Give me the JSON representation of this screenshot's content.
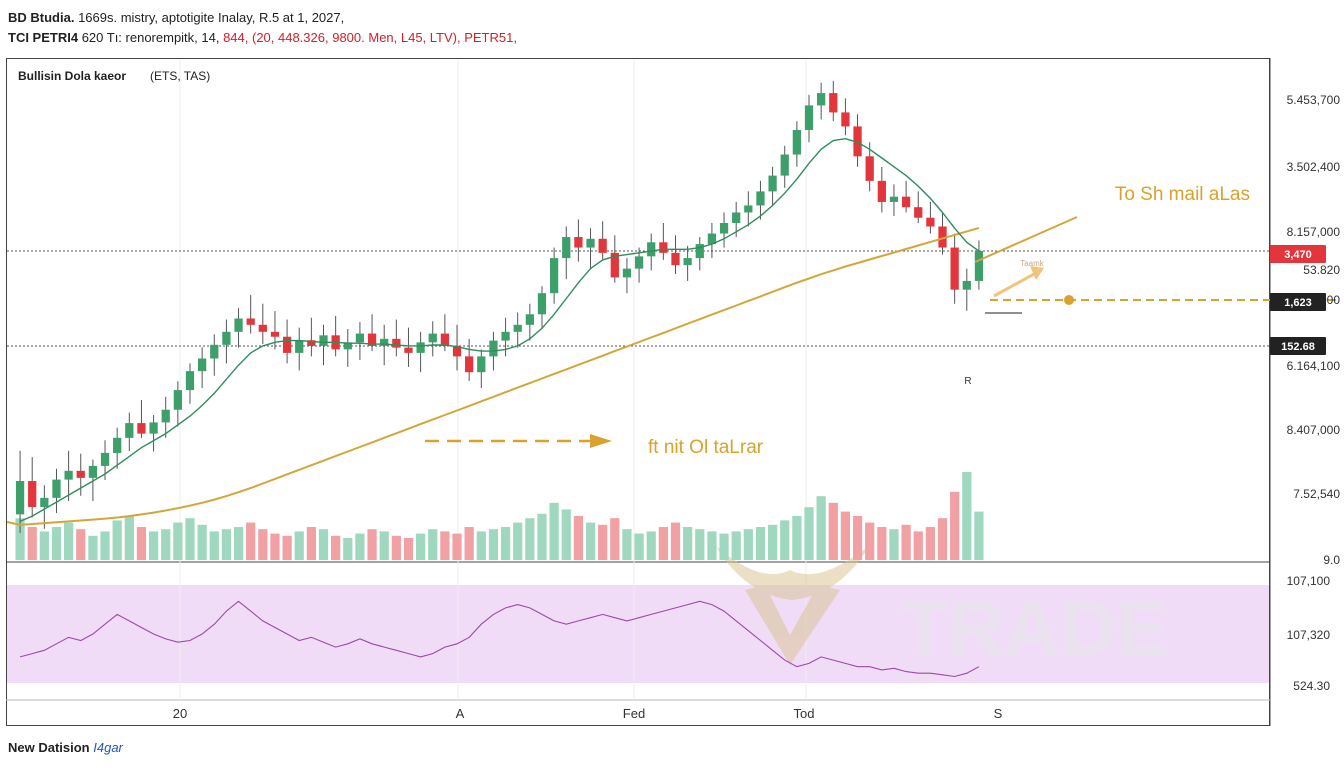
{
  "header": {
    "line1_bold": "BD Btudia.",
    "line1_rest": " 1669s. mistry, aptotigite Inalay, R.5 at 1, 2027,",
    "line2_bold": "TCI PETRI4",
    "line2_rest": " 620 Tı: renorempitk, 14, ",
    "line2_red": "844, (20, 448.326, 9800. Men, L45, LTV), PETR51,"
  },
  "chart_title": "Bullisin Dola kaeor",
  "chart_subtitle": "(ETS, TAS)",
  "footer": {
    "label": "New Datision",
    "link": "I4gar"
  },
  "colors": {
    "up": "#3da06a",
    "down": "#e2363c",
    "vol_up": "#9fd8bf",
    "vol_down": "#f1a0a4",
    "ma_long": "#d4a63a",
    "ma_short": "#2f8d5c",
    "rsi_line": "#9a4aa8",
    "rsi_band": "#f0dcf7",
    "annotation": "#d9a22e"
  },
  "chart_data": {
    "type": "candlestick",
    "x_ticks": [
      "20",
      "A",
      "Fed",
      "Tod",
      "S"
    ],
    "y_ticks": [
      "5.453,700",
      "3.502,400",
      "8.157,000",
      "53.820",
      "1,000",
      "6.164,100",
      "8.407,000",
      "7.52,540",
      "9.0"
    ],
    "price_labels": [
      {
        "text": "3,470",
        "color": "#e2363c"
      },
      {
        "text": "1,623",
        "color": "#222222"
      },
      {
        "text": "152.68",
        "color": "#222222"
      }
    ],
    "rsi_ticks": [
      "107,100",
      "107,320",
      "524.30"
    ],
    "annotations": [
      {
        "text": "To Sh mail aLas"
      },
      {
        "text": "ft nit Ol taLrar"
      },
      {
        "text": "R"
      },
      {
        "text": "Taamk"
      }
    ],
    "watermark": "TRADE",
    "candles_ohlc": [
      [
        5660,
        6022,
        5554,
        5850
      ],
      [
        5850,
        5986,
        5642,
        5702
      ],
      [
        5702,
        5826,
        5578,
        5754
      ],
      [
        5754,
        5920,
        5668,
        5858
      ],
      [
        5858,
        6022,
        5736,
        5908
      ],
      [
        5908,
        6006,
        5766,
        5868
      ],
      [
        5868,
        5972,
        5736,
        5936
      ],
      [
        5936,
        6082,
        5856,
        6010
      ],
      [
        6010,
        6154,
        5920,
        6096
      ],
      [
        6096,
        6240,
        6020,
        6180
      ],
      [
        6180,
        6312,
        6096,
        6120
      ],
      [
        6120,
        6226,
        6018,
        6184
      ],
      [
        6184,
        6330,
        6096,
        6256
      ],
      [
        6256,
        6418,
        6160,
        6368
      ],
      [
        6368,
        6520,
        6290,
        6476
      ],
      [
        6476,
        6612,
        6380,
        6548
      ],
      [
        6548,
        6686,
        6450,
        6626
      ],
      [
        6626,
        6770,
        6520,
        6700
      ],
      [
        6700,
        6836,
        6610,
        6776
      ],
      [
        6776,
        6910,
        6690,
        6740
      ],
      [
        6740,
        6860,
        6630,
        6700
      ],
      [
        6700,
        6818,
        6600,
        6672
      ],
      [
        6672,
        6770,
        6520,
        6580
      ],
      [
        6580,
        6724,
        6480,
        6652
      ],
      [
        6652,
        6780,
        6560,
        6620
      ],
      [
        6620,
        6740,
        6510,
        6680
      ],
      [
        6680,
        6790,
        6560,
        6600
      ],
      [
        6600,
        6716,
        6500,
        6640
      ],
      [
        6640,
        6756,
        6540,
        6690
      ],
      [
        6690,
        6800,
        6590,
        6620
      ],
      [
        6620,
        6740,
        6510,
        6660
      ],
      [
        6660,
        6770,
        6560,
        6610
      ],
      [
        6610,
        6724,
        6500,
        6580
      ],
      [
        6580,
        6700,
        6470,
        6640
      ],
      [
        6640,
        6760,
        6560,
        6690
      ],
      [
        6690,
        6800,
        6590,
        6620
      ],
      [
        6620,
        6740,
        6480,
        6560
      ],
      [
        6560,
        6660,
        6420,
        6470
      ],
      [
        6470,
        6600,
        6380,
        6560
      ],
      [
        6560,
        6700,
        6480,
        6650
      ],
      [
        6650,
        6780,
        6560,
        6700
      ],
      [
        6700,
        6810,
        6610,
        6740
      ],
      [
        6740,
        6860,
        6650,
        6800
      ],
      [
        6800,
        6960,
        6720,
        6920
      ],
      [
        6920,
        7180,
        6860,
        7120
      ],
      [
        7120,
        7300,
        7000,
        7240
      ],
      [
        7240,
        7340,
        7100,
        7180
      ],
      [
        7180,
        7290,
        7060,
        7230
      ],
      [
        7230,
        7330,
        7110,
        7150
      ],
      [
        7150,
        7250,
        6980,
        7010
      ],
      [
        7010,
        7120,
        6920,
        7060
      ],
      [
        7060,
        7180,
        6980,
        7130
      ],
      [
        7130,
        7260,
        7050,
        7210
      ],
      [
        7210,
        7320,
        7110,
        7150
      ],
      [
        7150,
        7250,
        7030,
        7080
      ],
      [
        7080,
        7190,
        6990,
        7120
      ],
      [
        7120,
        7240,
        7050,
        7200
      ],
      [
        7200,
        7320,
        7120,
        7260
      ],
      [
        7260,
        7380,
        7180,
        7320
      ],
      [
        7320,
        7440,
        7240,
        7380
      ],
      [
        7380,
        7500,
        7300,
        7420
      ],
      [
        7420,
        7560,
        7340,
        7500
      ],
      [
        7500,
        7640,
        7420,
        7590
      ],
      [
        7590,
        7760,
        7520,
        7710
      ],
      [
        7710,
        7900,
        7640,
        7850
      ],
      [
        7850,
        8050,
        7780,
        7990
      ],
      [
        7990,
        8120,
        7910,
        8060
      ],
      [
        8060,
        8130,
        7900,
        7950
      ],
      [
        7950,
        8030,
        7820,
        7870
      ],
      [
        7870,
        7940,
        7640,
        7700
      ],
      [
        7700,
        7780,
        7500,
        7560
      ],
      [
        7560,
        7640,
        7380,
        7440
      ],
      [
        7440,
        7540,
        7360,
        7470
      ],
      [
        7470,
        7560,
        7380,
        7410
      ],
      [
        7410,
        7500,
        7320,
        7350
      ],
      [
        7350,
        7440,
        7260,
        7300
      ],
      [
        7300,
        7380,
        7140,
        7180
      ],
      [
        7180,
        7260,
        6860,
        6940
      ],
      [
        6940,
        7060,
        6820,
        6990
      ],
      [
        6990,
        7220,
        6940,
        7160
      ]
    ],
    "volume": [
      38,
      30,
      26,
      30,
      34,
      28,
      22,
      26,
      36,
      40,
      30,
      26,
      28,
      34,
      38,
      32,
      26,
      28,
      30,
      34,
      28,
      24,
      22,
      26,
      30,
      28,
      22,
      20,
      24,
      28,
      26,
      22,
      20,
      24,
      28,
      26,
      24,
      30,
      26,
      28,
      30,
      34,
      38,
      42,
      52,
      46,
      40,
      34,
      32,
      38,
      28,
      24,
      26,
      30,
      34,
      30,
      28,
      26,
      24,
      26,
      28,
      30,
      32,
      36,
      40,
      48,
      58,
      52,
      44,
      40,
      34,
      30,
      28,
      32,
      26,
      30,
      38,
      62,
      80,
      44
    ],
    "ma_short": [
      5620,
      5650,
      5690,
      5730,
      5770,
      5810,
      5850,
      5890,
      5940,
      5990,
      6040,
      6080,
      6120,
      6170,
      6220,
      6280,
      6350,
      6430,
      6510,
      6580,
      6620,
      6640,
      6650,
      6650,
      6645,
      6640,
      6640,
      6635,
      6635,
      6630,
      6630,
      6625,
      6620,
      6620,
      6625,
      6625,
      6615,
      6600,
      6590,
      6590,
      6600,
      6620,
      6660,
      6720,
      6800,
      6890,
      6980,
      7060,
      7110,
      7130,
      7140,
      7150,
      7160,
      7170,
      7170,
      7170,
      7180,
      7200,
      7230,
      7270,
      7310,
      7360,
      7420,
      7490,
      7570,
      7660,
      7740,
      7790,
      7800,
      7780,
      7740,
      7690,
      7640,
      7590,
      7530,
      7460,
      7380,
      7290,
      7210,
      7160
    ],
    "ma_long": [
      5600,
      5605,
      5610,
      5615,
      5620,
      5625,
      5630,
      5636,
      5642,
      5650,
      5660,
      5670,
      5682,
      5695,
      5710,
      5726,
      5744,
      5764,
      5786,
      5810,
      5836,
      5862,
      5888,
      5914,
      5940,
      5966,
      5992,
      6018,
      6044,
      6070,
      6096,
      6122,
      6148,
      6174,
      6200,
      6226,
      6252,
      6278,
      6304,
      6330,
      6356,
      6382,
      6408,
      6434,
      6460,
      6486,
      6512,
      6538,
      6564,
      6590,
      6616,
      6642,
      6668,
      6694,
      6720,
      6746,
      6772,
      6798,
      6824,
      6850,
      6876,
      6902,
      6928,
      6954,
      6980,
      7004,
      7028,
      7050,
      7072,
      7092,
      7112,
      7132,
      7152,
      7172,
      7192,
      7212,
      7232,
      7252,
      7272,
      7292
    ],
    "rsi": [
      36,
      38,
      40,
      44,
      48,
      46,
      50,
      56,
      62,
      58,
      54,
      50,
      47,
      45,
      46,
      50,
      56,
      64,
      70,
      64,
      58,
      54,
      50,
      46,
      48,
      45,
      42,
      44,
      47,
      44,
      42,
      40,
      38,
      36,
      38,
      42,
      44,
      48,
      56,
      62,
      66,
      68,
      66,
      62,
      58,
      56,
      58,
      60,
      62,
      60,
      58,
      60,
      62,
      64,
      66,
      68,
      70,
      68,
      64,
      58,
      52,
      46,
      40,
      34,
      30,
      32,
      36,
      34,
      32,
      30,
      30,
      28,
      29,
      27,
      26,
      26,
      25,
      24,
      26,
      30
    ]
  }
}
